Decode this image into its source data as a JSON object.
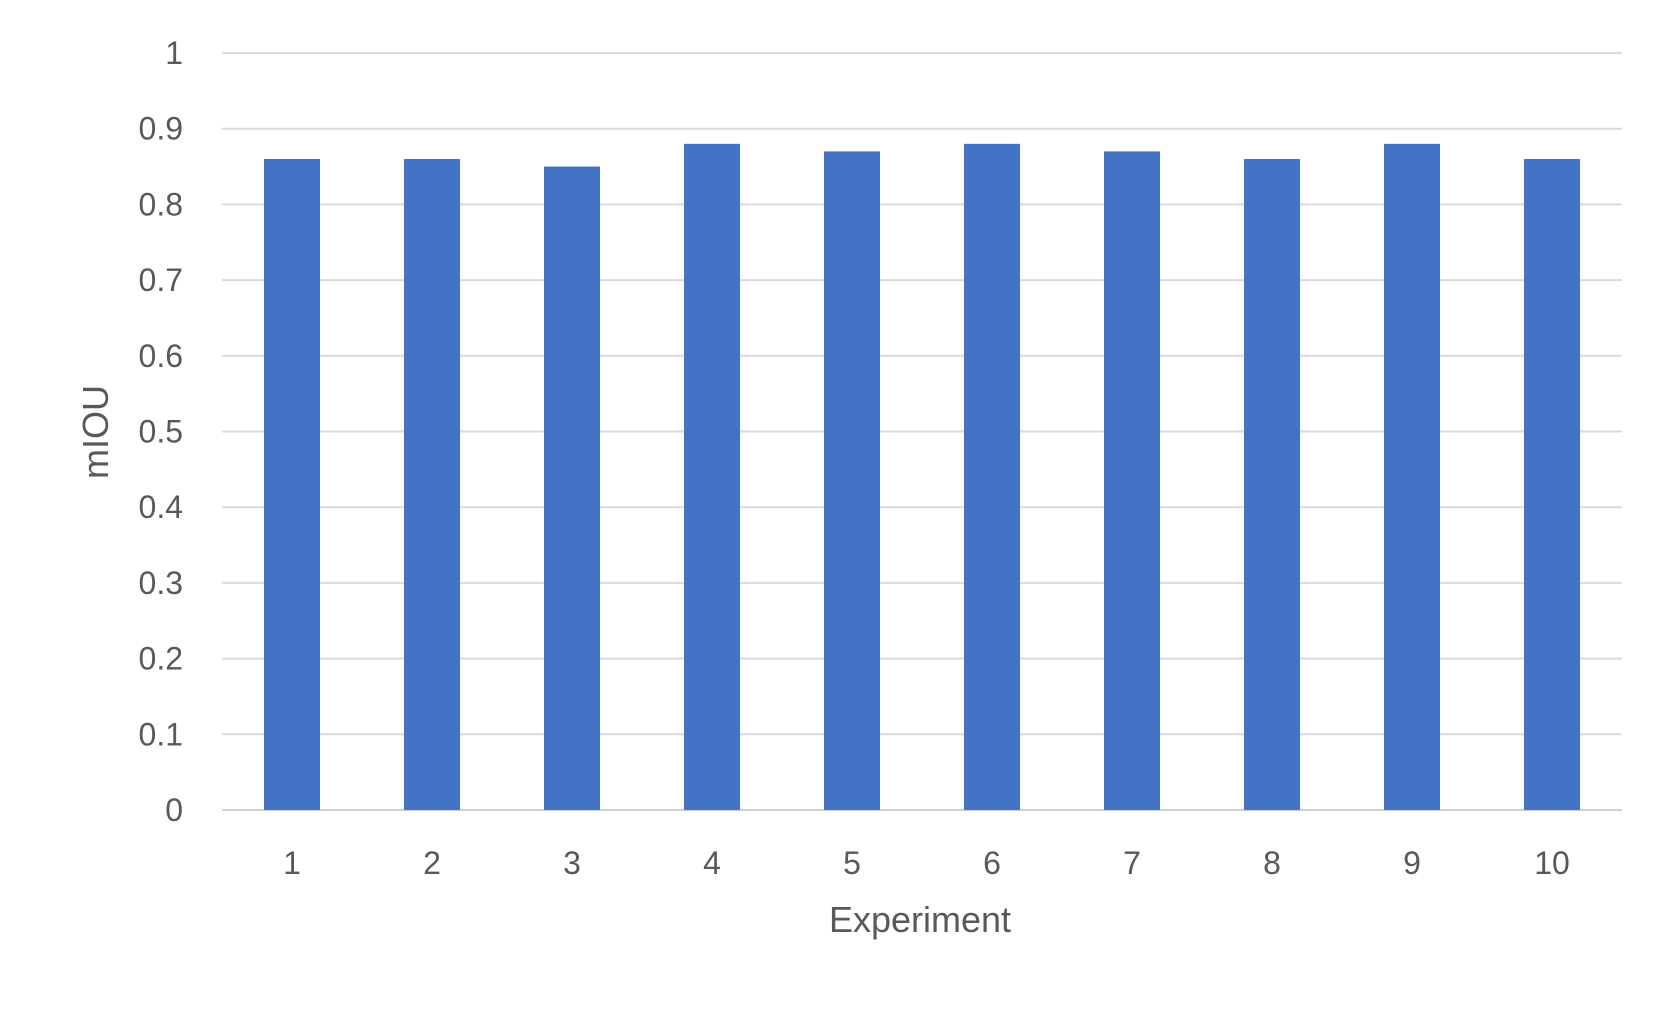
{
  "chart_data": {
    "type": "bar",
    "categories": [
      "1",
      "2",
      "3",
      "4",
      "5",
      "6",
      "7",
      "8",
      "9",
      "10"
    ],
    "series": [
      {
        "values": [
          0.86,
          0.86,
          0.85,
          0.88,
          0.87,
          0.88,
          0.87,
          0.86,
          0.88,
          0.86
        ]
      }
    ],
    "title": "",
    "xlabel": "Experiment",
    "ylabel": "mIOU",
    "ylim": [
      0,
      1
    ],
    "yticks": [
      "0",
      "0.1",
      "0.2",
      "0.3",
      "0.4",
      "0.5",
      "0.6",
      "0.7",
      "0.8",
      "0.9",
      "1"
    ],
    "grid": true,
    "legend": "none",
    "bar_color": "#4472C4"
  }
}
